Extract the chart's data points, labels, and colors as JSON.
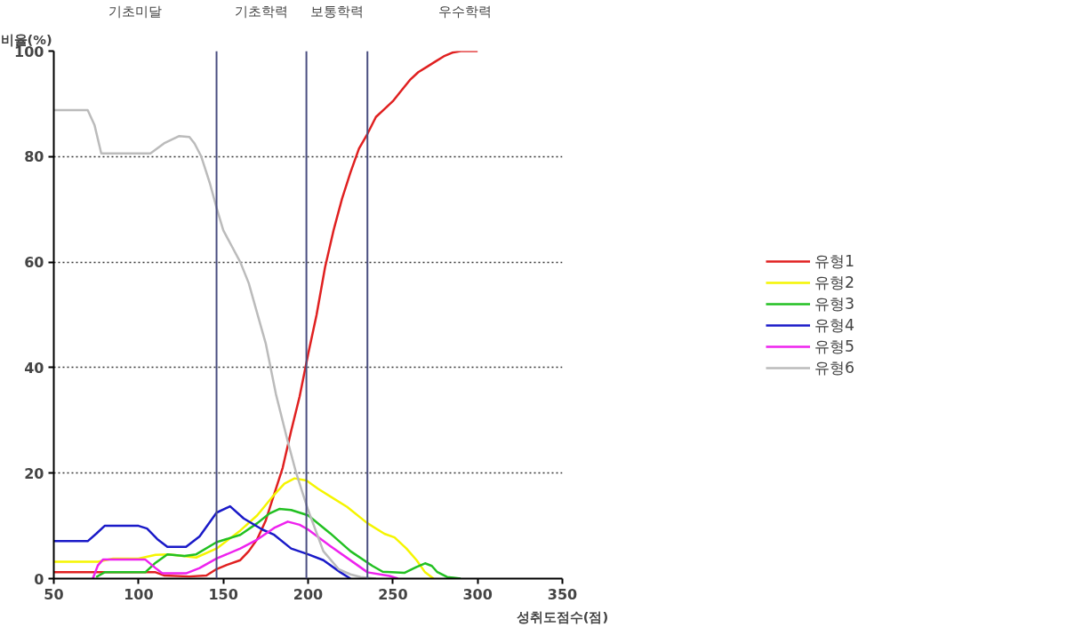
{
  "chart_data": {
    "type": "line",
    "xlabel": "성취도점수(점)",
    "ylabel": "비율(%)",
    "xlim": [
      50,
      350
    ],
    "ylim": [
      0,
      100
    ],
    "xticks": [
      50,
      100,
      150,
      200,
      250,
      300,
      350
    ],
    "yticks": [
      0,
      20,
      40,
      60,
      80,
      100
    ],
    "grid": "y",
    "legend": "right",
    "line_style": "solid",
    "marker": "none",
    "ref_lines": [
      {
        "axis": "x",
        "value": 146,
        "color": "#4a4e80"
      },
      {
        "axis": "x",
        "value": 199,
        "color": "#4a4e80"
      },
      {
        "axis": "x",
        "value": 235,
        "color": "#4a4e80"
      }
    ],
    "annotations": [
      "기초미달",
      "기초학력",
      "보통학력",
      "우수학력"
    ],
    "series": [
      {
        "name": "유형1",
        "color": "#e02020",
        "x": [
          50,
          110,
          115,
          130,
          140,
          146,
          152,
          160,
          165,
          170,
          175,
          180,
          185,
          190,
          195,
          200,
          205,
          210,
          215,
          220,
          225,
          230,
          235,
          240,
          245,
          250,
          255,
          260,
          265,
          270,
          275,
          280,
          285,
          290,
          300
        ],
        "values": [
          1.2,
          1.2,
          0.6,
          0.4,
          0.6,
          1.8,
          2.6,
          3.5,
          5.2,
          7.5,
          11,
          16,
          21,
          28,
          34.5,
          42.5,
          50,
          59,
          66,
          72,
          77,
          81.5,
          84.3,
          87.5,
          89,
          90.5,
          92.5,
          94.5,
          96,
          97,
          98,
          99,
          99.7,
          100,
          100
        ]
      },
      {
        "name": "유형2",
        "color": "#f5f500",
        "x": [
          50,
          76,
          85,
          100,
          110,
          118,
          126,
          134,
          146,
          160,
          170,
          180,
          186,
          192,
          199,
          206,
          213,
          223,
          235,
          245,
          251,
          258,
          264,
          269,
          274
        ],
        "values": [
          3.2,
          3.2,
          3.8,
          3.8,
          4.5,
          4.6,
          4.3,
          4,
          5.7,
          9.1,
          12,
          15.9,
          18,
          19,
          18.6,
          17,
          15.6,
          13.6,
          10.5,
          8.5,
          7.8,
          5.7,
          3.5,
          1.2,
          0
        ]
      },
      {
        "name": "유형3",
        "color": "#22c022",
        "x": [
          75,
          80,
          104,
          110,
          117,
          127,
          134,
          146,
          160,
          170,
          177,
          183,
          190,
          200,
          213,
          225,
          238,
          244,
          257,
          264,
          269,
          273,
          276,
          282,
          290
        ],
        "values": [
          0.3,
          1.2,
          1.2,
          3,
          4.6,
          4.3,
          4.6,
          6.9,
          8.3,
          10.5,
          12.3,
          13.2,
          13,
          12,
          8.6,
          5.2,
          2.4,
          1.3,
          1.1,
          2.2,
          2.9,
          2.4,
          1.3,
          0.3,
          0
        ]
      },
      {
        "name": "유형4",
        "color": "#1a1ac8",
        "x": [
          50,
          70,
          75,
          80,
          100,
          105,
          111,
          117,
          128,
          136,
          146,
          154,
          162,
          173,
          180,
          190,
          200,
          209,
          219,
          225
        ],
        "values": [
          7.1,
          7.1,
          8.5,
          10,
          10,
          9.5,
          7.5,
          6,
          6,
          8,
          12.5,
          13.7,
          11.4,
          9.3,
          8.3,
          5.7,
          4.6,
          3.5,
          1.2,
          0
        ]
      },
      {
        "name": "유형5",
        "color": "#ee22ee",
        "x": [
          73,
          76,
          79,
          104,
          110,
          114,
          128,
          136,
          146,
          160,
          170,
          180,
          188,
          195,
          200,
          213,
          228,
          235,
          248,
          253
        ],
        "values": [
          0,
          2.5,
          3.6,
          3.6,
          2,
          1,
          1,
          2,
          3.8,
          5.7,
          7.4,
          9.6,
          10.8,
          10.2,
          9.3,
          6.2,
          2.8,
          1.2,
          0.5,
          0
        ]
      },
      {
        "name": "유형6",
        "color": "#bbbbbb",
        "x": [
          50,
          70,
          74,
          78,
          107,
          115,
          124,
          130,
          133,
          137,
          142,
          146,
          150,
          155,
          160,
          165,
          169,
          175,
          181,
          188,
          193,
          200,
          209,
          218,
          225,
          231,
          240
        ],
        "values": [
          88.8,
          88.8,
          86,
          80.6,
          80.6,
          82.5,
          83.9,
          83.7,
          82.5,
          80,
          75,
          70.3,
          66,
          63,
          60,
          56,
          51.4,
          44.6,
          35,
          26,
          20,
          13,
          5.2,
          1.8,
          0.8,
          0.3,
          0
        ]
      }
    ]
  }
}
